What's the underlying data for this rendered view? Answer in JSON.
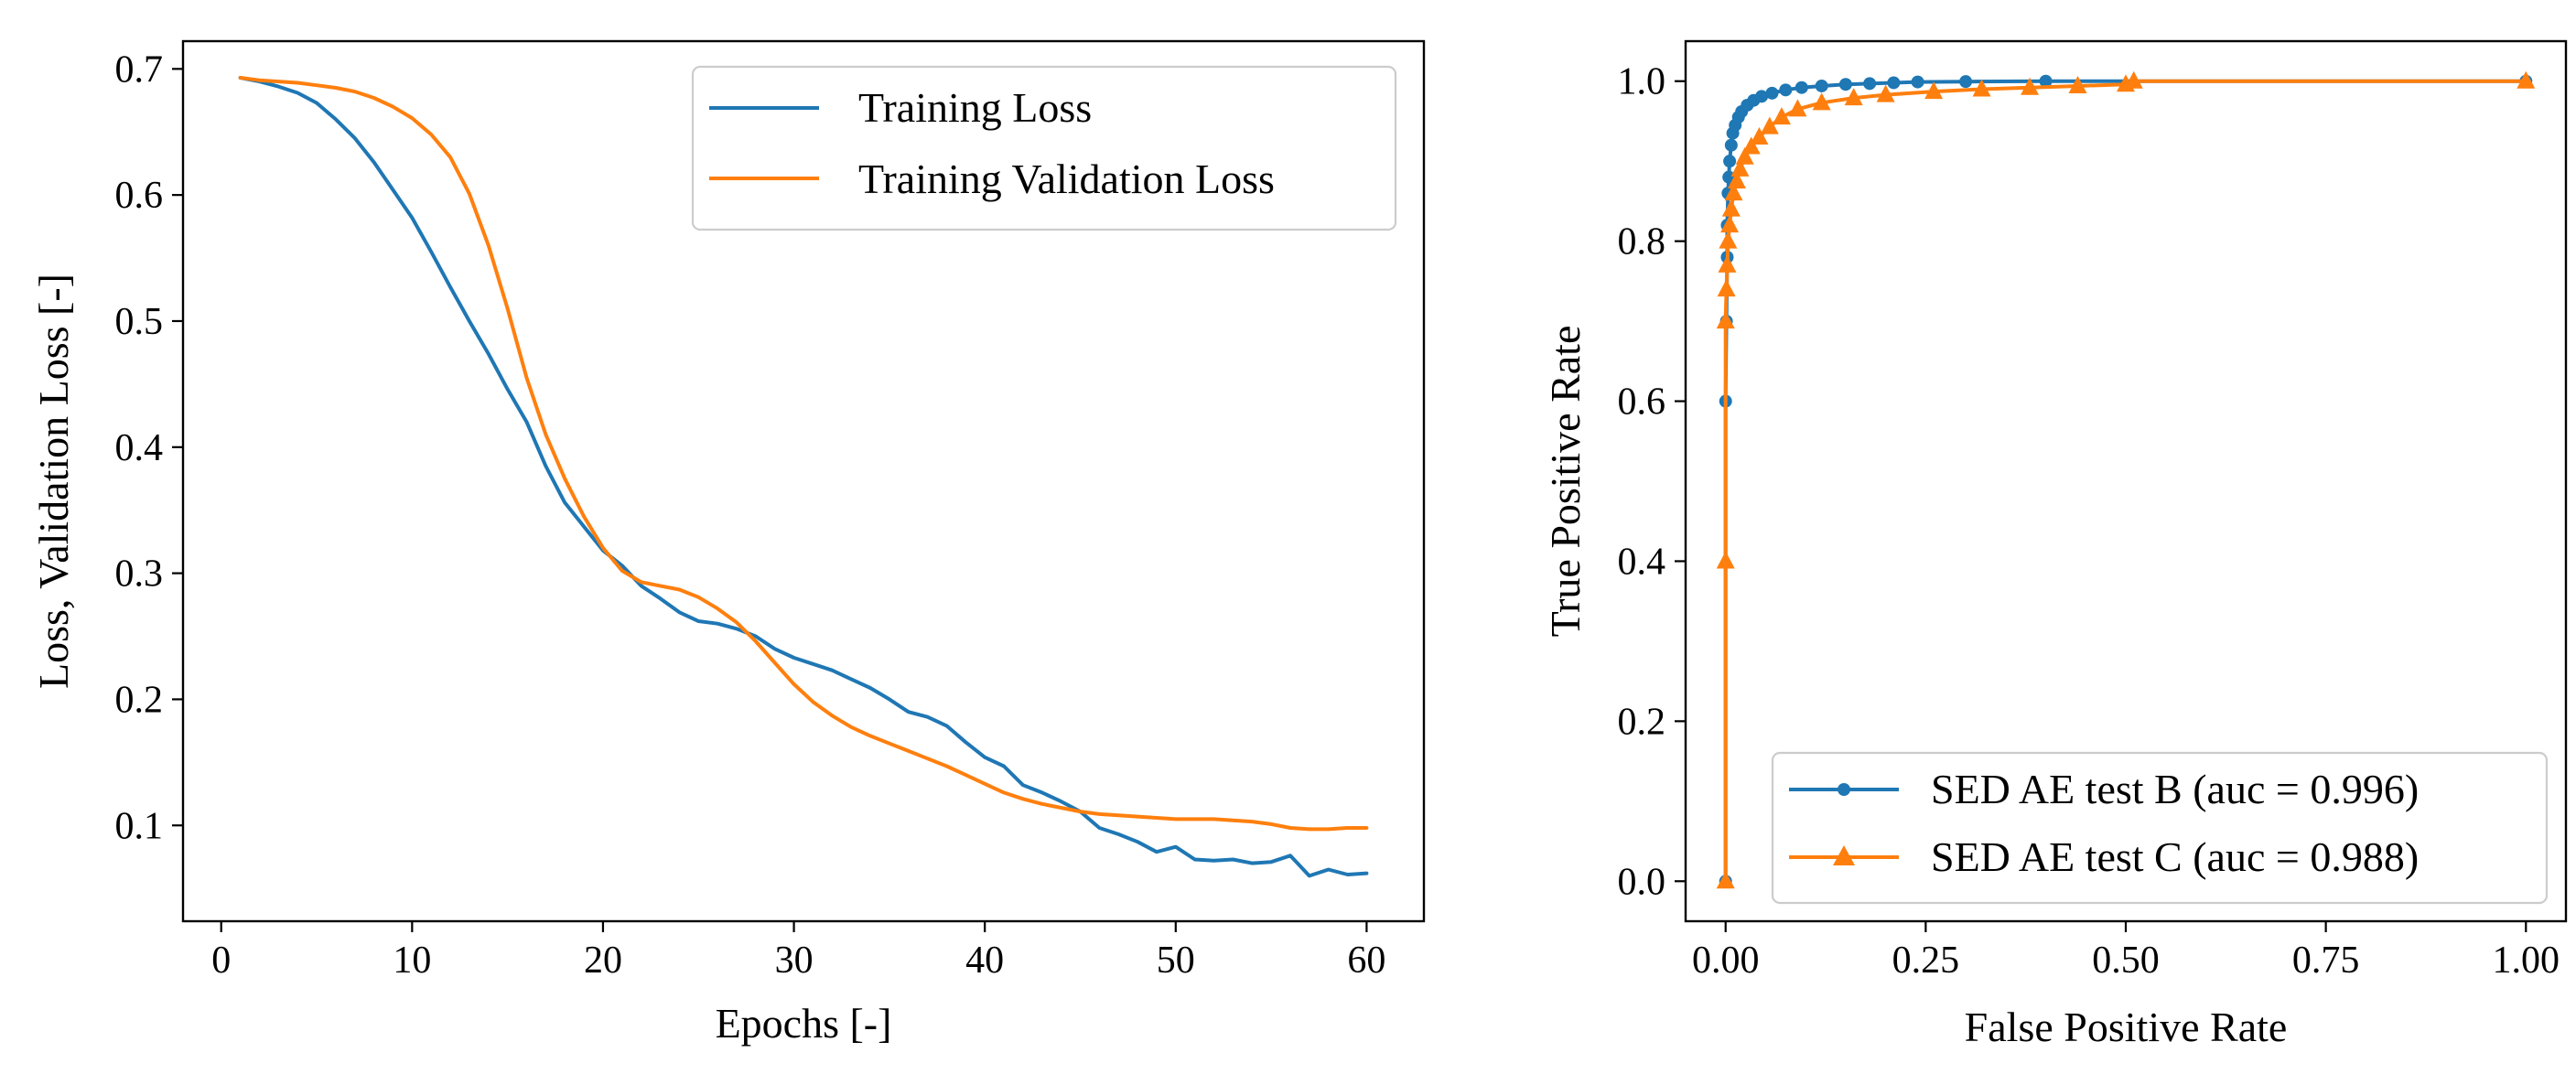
{
  "chart_data": [
    {
      "type": "line",
      "title": "",
      "xlabel": "Epochs [-]",
      "ylabel": "Loss, Validation Loss [-]",
      "xlim": [
        -2,
        63
      ],
      "ylim": [
        0.024,
        0.722
      ],
      "xticks": [
        0,
        10,
        20,
        30,
        40,
        50,
        60
      ],
      "yticks": [
        0.1,
        0.2,
        0.3,
        0.4,
        0.5,
        0.6,
        0.7
      ],
      "x_tick_labels": [
        "0",
        "10",
        "20",
        "30",
        "40",
        "50",
        "60"
      ],
      "y_tick_labels": [
        "0.1",
        "0.2",
        "0.3",
        "0.4",
        "0.5",
        "0.6",
        "0.7"
      ],
      "legend_position": "upper right",
      "series": [
        {
          "name": "Training Loss",
          "color": "#1f77b4",
          "x": [
            1,
            2,
            3,
            4,
            5,
            6,
            7,
            8,
            9,
            10,
            11,
            12,
            13,
            14,
            15,
            16,
            17,
            18,
            19,
            20,
            21,
            22,
            23,
            24,
            25,
            26,
            27,
            28,
            29,
            30,
            31,
            32,
            33,
            34,
            35,
            36,
            37,
            38,
            39,
            40,
            41,
            42,
            43,
            44,
            45,
            46,
            47,
            48,
            49,
            50,
            51,
            52,
            53,
            54,
            55,
            56,
            57,
            58,
            59,
            60
          ],
          "values": [
            0.693,
            0.69,
            0.686,
            0.681,
            0.673,
            0.66,
            0.645,
            0.626,
            0.604,
            0.582,
            0.555,
            0.527,
            0.5,
            0.474,
            0.446,
            0.42,
            0.385,
            0.356,
            0.337,
            0.318,
            0.306,
            0.29,
            0.28,
            0.269,
            0.262,
            0.26,
            0.256,
            0.25,
            0.24,
            0.233,
            0.228,
            0.223,
            0.216,
            0.209,
            0.2,
            0.19,
            0.186,
            0.179,
            0.166,
            0.154,
            0.147,
            0.132,
            0.126,
            0.119,
            0.111,
            0.098,
            0.093,
            0.087,
            0.079,
            0.083,
            0.073,
            0.072,
            0.073,
            0.07,
            0.071,
            0.076,
            0.06,
            0.065,
            0.061,
            0.062
          ]
        },
        {
          "name": "Training Validation Loss",
          "color": "#ff7f0e",
          "x": [
            1,
            2,
            3,
            4,
            5,
            6,
            7,
            8,
            9,
            10,
            11,
            12,
            13,
            14,
            15,
            16,
            17,
            18,
            19,
            20,
            21,
            22,
            23,
            24,
            25,
            26,
            27,
            28,
            29,
            30,
            31,
            32,
            33,
            34,
            35,
            36,
            37,
            38,
            39,
            40,
            41,
            42,
            43,
            44,
            45,
            46,
            47,
            48,
            49,
            50,
            51,
            52,
            53,
            54,
            55,
            56,
            57,
            58,
            59,
            60
          ],
          "values": [
            0.693,
            0.691,
            0.69,
            0.689,
            0.687,
            0.685,
            0.682,
            0.677,
            0.67,
            0.661,
            0.648,
            0.63,
            0.601,
            0.56,
            0.51,
            0.455,
            0.41,
            0.375,
            0.345,
            0.32,
            0.302,
            0.293,
            0.29,
            0.287,
            0.281,
            0.272,
            0.261,
            0.246,
            0.229,
            0.212,
            0.198,
            0.187,
            0.178,
            0.171,
            0.165,
            0.159,
            0.153,
            0.147,
            0.14,
            0.133,
            0.126,
            0.121,
            0.117,
            0.114,
            0.111,
            0.109,
            0.108,
            0.107,
            0.106,
            0.105,
            0.105,
            0.105,
            0.104,
            0.103,
            0.101,
            0.098,
            0.097,
            0.097,
            0.098,
            0.098
          ]
        }
      ]
    },
    {
      "type": "line",
      "title": "",
      "xlabel": "False Positive Rate",
      "ylabel": "True Positive Rate",
      "xlim": [
        -0.05,
        1.05
      ],
      "ylim": [
        -0.05,
        1.05
      ],
      "xticks": [
        0.0,
        0.25,
        0.5,
        0.75,
        1.0
      ],
      "yticks": [
        0.0,
        0.2,
        0.4,
        0.6,
        0.8,
        1.0
      ],
      "x_tick_labels": [
        "0.00",
        "0.25",
        "0.50",
        "0.75",
        "1.00"
      ],
      "y_tick_labels": [
        "0.0",
        "0.2",
        "0.4",
        "0.6",
        "0.8",
        "1.0"
      ],
      "legend_position": "lower right",
      "series": [
        {
          "name": "SED AE test B (auc = 0.996)",
          "color": "#1f77b4",
          "marker": "circle",
          "x": [
            0.0,
            0.0,
            0.001,
            0.002,
            0.002,
            0.003,
            0.004,
            0.005,
            0.007,
            0.009,
            0.012,
            0.016,
            0.02,
            0.027,
            0.035,
            0.045,
            0.058,
            0.075,
            0.095,
            0.12,
            0.15,
            0.18,
            0.21,
            0.24,
            0.3,
            0.4,
            1.0
          ],
          "values": [
            0.0,
            0.6,
            0.7,
            0.78,
            0.82,
            0.86,
            0.88,
            0.9,
            0.92,
            0.935,
            0.945,
            0.955,
            0.962,
            0.97,
            0.976,
            0.981,
            0.985,
            0.989,
            0.992,
            0.994,
            0.996,
            0.997,
            0.998,
            0.999,
            0.9995,
            1.0,
            1.0
          ]
        },
        {
          "name": "SED AE test C (auc = 0.988)",
          "color": "#ff7f0e",
          "marker": "triangle",
          "x": [
            0.0,
            0.0,
            0.0,
            0.001,
            0.002,
            0.003,
            0.005,
            0.007,
            0.01,
            0.014,
            0.018,
            0.024,
            0.032,
            0.042,
            0.055,
            0.07,
            0.09,
            0.12,
            0.16,
            0.2,
            0.26,
            0.32,
            0.38,
            0.44,
            0.5,
            0.51,
            1.0
          ],
          "values": [
            0.0,
            0.4,
            0.7,
            0.74,
            0.77,
            0.8,
            0.82,
            0.84,
            0.86,
            0.875,
            0.89,
            0.905,
            0.918,
            0.93,
            0.943,
            0.955,
            0.965,
            0.973,
            0.979,
            0.983,
            0.987,
            0.99,
            0.992,
            0.994,
            0.996,
            1.0,
            1.0
          ]
        }
      ]
    }
  ]
}
